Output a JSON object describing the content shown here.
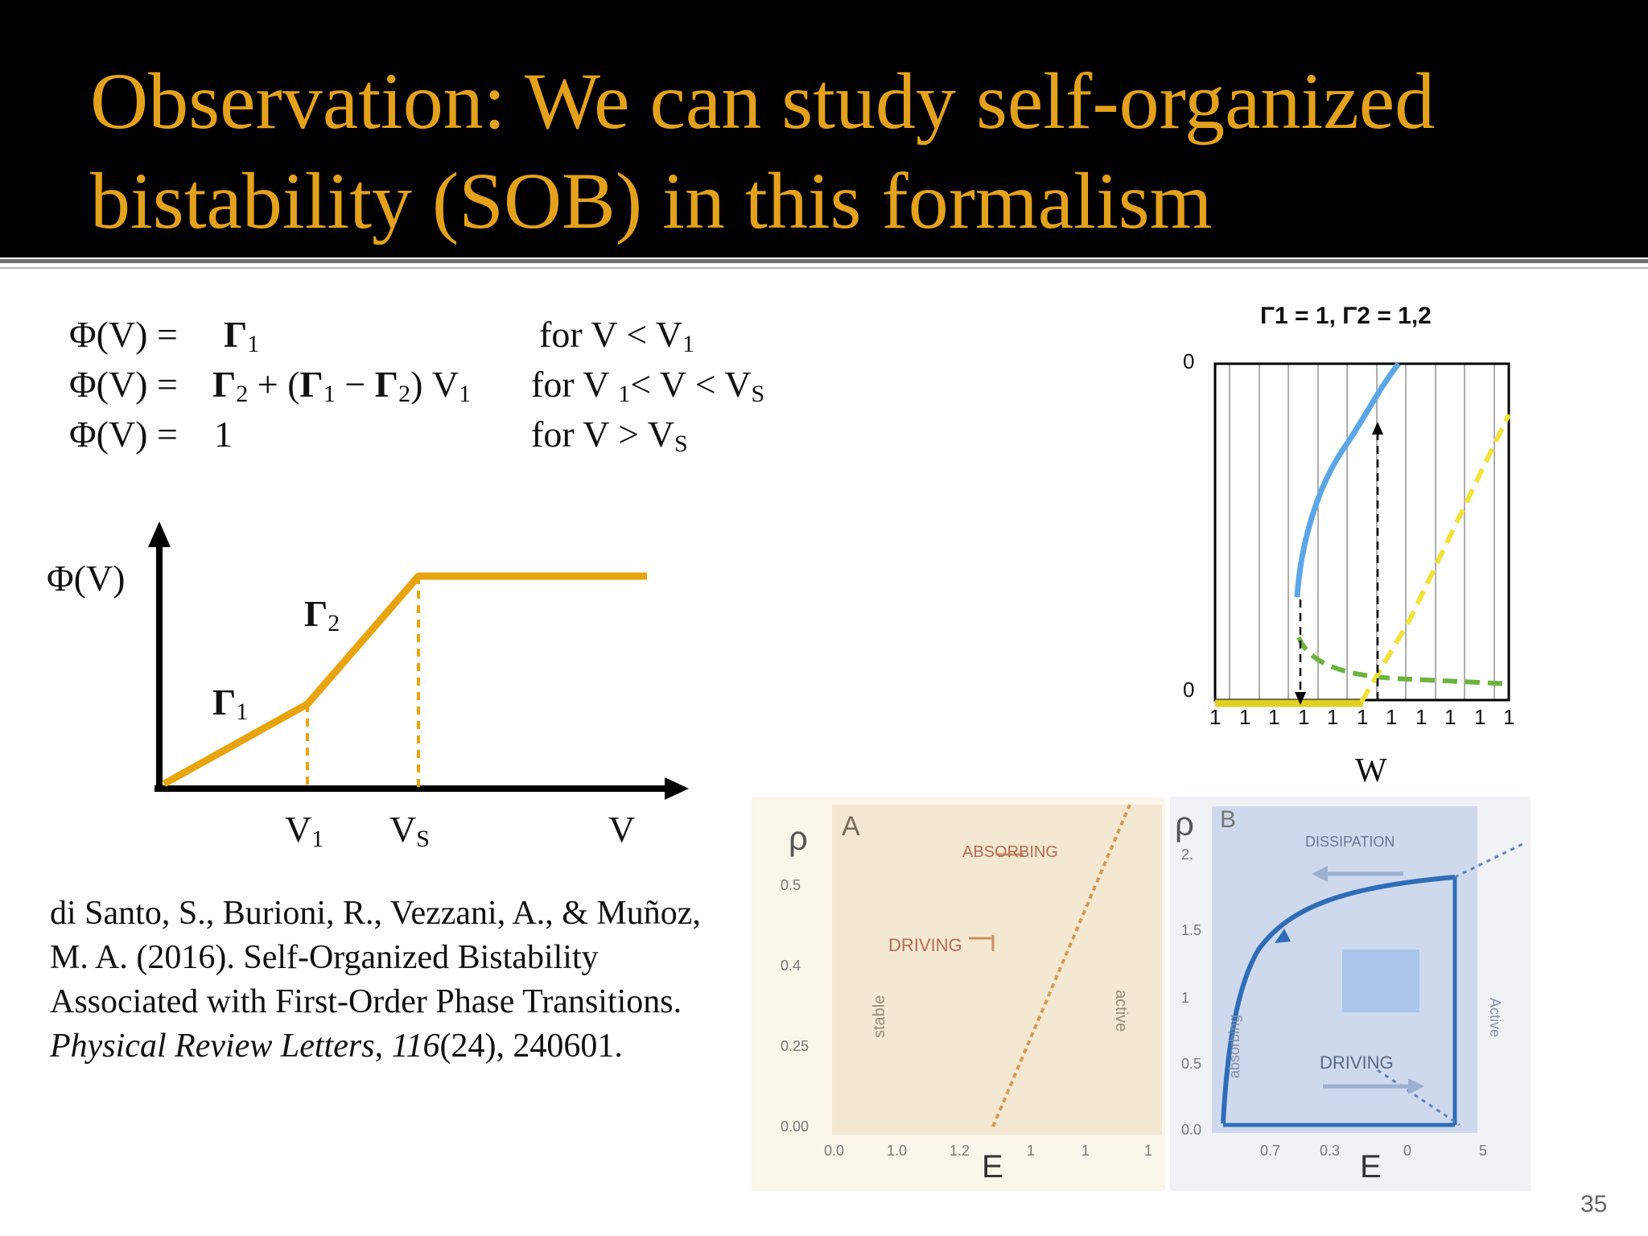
{
  "slide": {
    "title_line1": "Observation: We can study self-organized",
    "title_line2": "bistability (SOB) in this formalism",
    "page_number": "35"
  },
  "equations": {
    "phi_v": "Φ(V) =",
    "gamma": "Γ",
    "row1_cond_pre": "for V < V",
    "row2_plus": "+ (",
    "row2_minus": "−",
    "row2_tail": ") V",
    "row2_cond_pre": "for V",
    "row2_cond_mid": "< V < V",
    "row3_val": "1",
    "row3_cond_pre": "for V > V",
    "sub_1": "1",
    "sub_2": "2",
    "sub_s": "S"
  },
  "phi_chart": {
    "y_label": "Φ(V)",
    "x_label": "V",
    "gamma_letter": "Γ",
    "sub_1": "1",
    "sub_2": "2",
    "tick_v": "V",
    "sub_s": "S",
    "line_color": "#e8a40f"
  },
  "reference": {
    "text_pre": "di Santo, S., Burioni, R., Vezzani, A., & Muñoz, M. A. (2016). Self-Organized Bistability Associated with First-Order Phase Transitions. ",
    "journal": "Physical Review Letters",
    "comma": ", ",
    "volume": "116",
    "text_post": "(24), 240601."
  },
  "bif_chart": {
    "title": "Γ1 = 1,  Γ2 = 1,2",
    "y_top": "0",
    "y_bottom": "0",
    "x_tick": "1",
    "x_label": "W",
    "colors": {
      "upper": "#5ca6e8",
      "yellow": "#f2e23a",
      "green": "#6db33f",
      "base": "#e2cf22"
    }
  },
  "paper_fig_a": {
    "panel": "A",
    "y_label": "ρ",
    "x_label": "E",
    "y_ticks": [
      "0.5",
      "0.4",
      "0.25",
      "0.00"
    ],
    "x_ticks": [
      "0.0",
      "1.0",
      "1.2",
      "1",
      "1",
      "1"
    ],
    "text_absorbing": "ABSORBING",
    "text_driving": "DRIVING",
    "text_stable": "stable",
    "text_active": "active"
  },
  "paper_fig_b": {
    "panel": "B",
    "y_label": "ρ",
    "x_label": "E",
    "y_ticks": [
      "2.",
      "1.5",
      "1",
      "0.5",
      "0.0"
    ],
    "x_ticks": [
      "0.7",
      "0.3",
      "0",
      "5"
    ],
    "text_dissipation": "DISSIPATION",
    "text_driving": "DRIVING",
    "text_absorbing": "absorbing",
    "text_active": "Active"
  }
}
